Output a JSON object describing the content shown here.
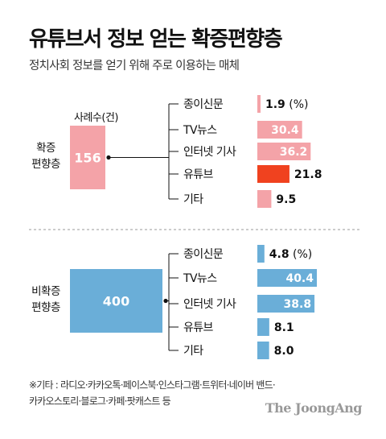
{
  "title": "유튜브서 정보 얻는 확증편향층",
  "subtitle": "정치사회 정보를 얻기 위해 주로 이용하는 매체",
  "count_label": "사례수(건)",
  "percent_unit": "(%)",
  "footnote": [
    "※기타 : 라디오·카카오톡·페이스북·인스타그램·트위터·네이버 밴드·",
    "카카오스토리·블로그·카페·팟캐스트 등"
  ],
  "brand": "The JoongAng",
  "colors": {
    "group1": "#f4a3a8",
    "highlight": "#f0421f",
    "group2": "#6aaed8",
    "dashed": "#999999"
  },
  "chart_data": {
    "type": "bar",
    "categories": [
      "종이신문",
      "TV뉴스",
      "인터넷 기사",
      "유튜브",
      "기타"
    ],
    "series": [
      {
        "name": "확증편향층",
        "count": 156,
        "values": [
          1.9,
          30.4,
          36.2,
          21.8,
          9.5
        ],
        "highlight_index": 3
      },
      {
        "name": "비확증편향층",
        "count": 400,
        "values": [
          4.8,
          40.4,
          38.8,
          8.1,
          8.0
        ]
      }
    ],
    "group_labels": [
      [
        "확증",
        "편향층"
      ],
      [
        "비확증",
        "편향층"
      ]
    ],
    "xlim": [
      0,
      40.4
    ]
  }
}
